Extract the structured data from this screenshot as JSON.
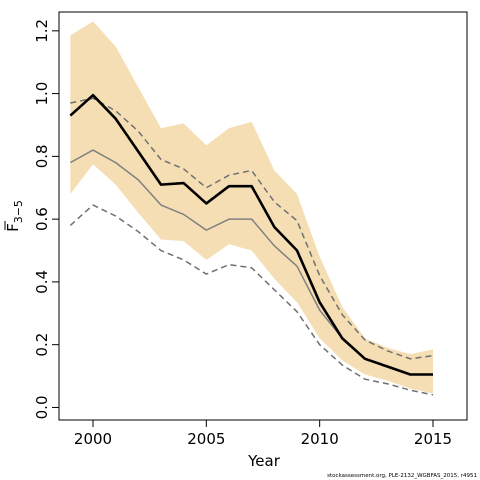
{
  "chart_data": {
    "type": "line",
    "xlabel": "Year",
    "ylabel": {
      "main": "F",
      "sub": "3−5",
      "overbar": true
    },
    "xlim": [
      1998.5,
      2016.5
    ],
    "ylim": [
      -0.04,
      1.26
    ],
    "xticks": [
      2000,
      2005,
      2010,
      2015
    ],
    "yticks": [
      0.0,
      0.2,
      0.4,
      0.6,
      0.8,
      1.0,
      1.2
    ],
    "ytick_labels": [
      "0.0",
      "0.2",
      "0.4",
      "0.6",
      "0.8",
      "1.0",
      "1.2"
    ],
    "x": [
      1999,
      2000,
      2001,
      2002,
      2003,
      2004,
      2005,
      2006,
      2007,
      2008,
      2009,
      2010,
      2011,
      2012,
      2013,
      2014,
      2015
    ],
    "band": {
      "color": "#f5deb3",
      "lower": [
        0.68,
        0.775,
        0.71,
        0.62,
        0.535,
        0.53,
        0.47,
        0.52,
        0.5,
        0.41,
        0.335,
        0.22,
        0.15,
        0.105,
        0.085,
        0.06,
        0.045
      ],
      "upper": [
        1.185,
        1.23,
        1.15,
        1.02,
        0.89,
        0.905,
        0.835,
        0.89,
        0.91,
        0.755,
        0.68,
        0.48,
        0.32,
        0.22,
        0.19,
        0.17,
        0.185
      ]
    },
    "series": [
      {
        "role": "estimate",
        "color": "#000000",
        "style": "solid",
        "width": 2.6,
        "values": [
          0.93,
          0.995,
          0.92,
          0.815,
          0.71,
          0.715,
          0.65,
          0.705,
          0.705,
          0.575,
          0.5,
          0.335,
          0.22,
          0.155,
          0.13,
          0.105,
          0.105
        ]
      },
      {
        "role": "mean",
        "color": "#808080",
        "style": "solid",
        "width": 1.5,
        "values": [
          0.78,
          0.82,
          0.78,
          0.725,
          0.645,
          0.615,
          0.565,
          0.6,
          0.6,
          0.515,
          0.45,
          0.31,
          0.22,
          0.155,
          0.13,
          0.105,
          0.105
        ]
      },
      {
        "role": "upper",
        "color": "#707070",
        "style": "dashed",
        "width": 1.5,
        "values": [
          0.97,
          0.985,
          0.945,
          0.88,
          0.79,
          0.76,
          0.7,
          0.74,
          0.755,
          0.655,
          0.595,
          0.42,
          0.295,
          0.215,
          0.18,
          0.155,
          0.165
        ]
      },
      {
        "role": "lower",
        "color": "#707070",
        "style": "dashed",
        "width": 1.5,
        "values": [
          0.58,
          0.645,
          0.61,
          0.56,
          0.5,
          0.47,
          0.425,
          0.455,
          0.445,
          0.375,
          0.305,
          0.2,
          0.135,
          0.09,
          0.075,
          0.055,
          0.04
        ]
      }
    ],
    "grid": false,
    "caption": "stockassessment.org, PLE-2132_WGBFAS_2015, r4951"
  }
}
